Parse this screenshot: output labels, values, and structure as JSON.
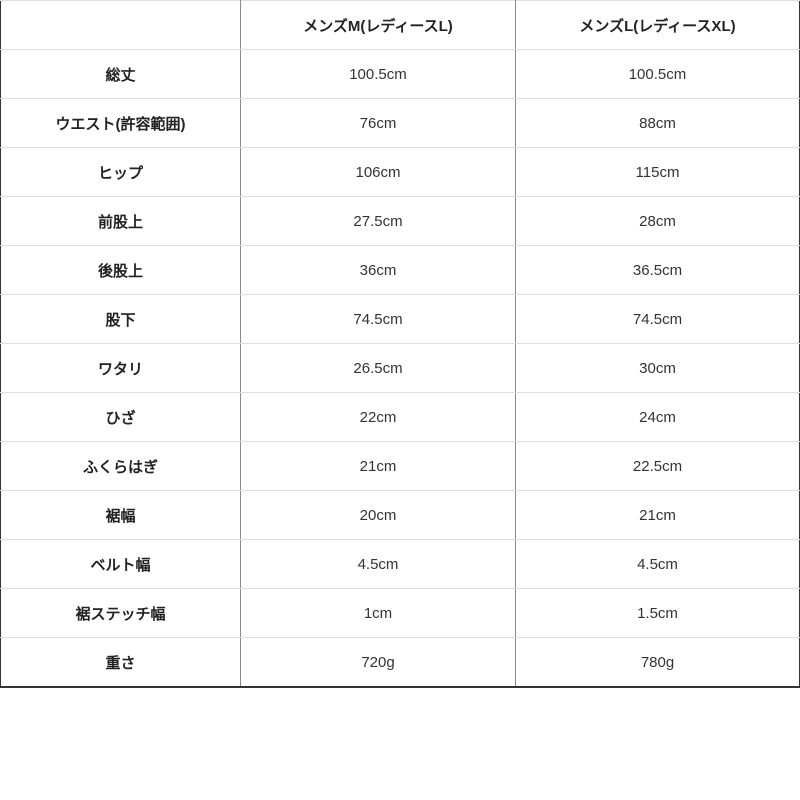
{
  "table": {
    "headers": [
      "",
      "メンズM(レディースL)",
      "メンズL(レディースXL)"
    ],
    "rows": [
      [
        "総丈",
        "100.5cm",
        "100.5cm"
      ],
      [
        "ウエスト(許容範囲)",
        "76cm",
        "88cm"
      ],
      [
        "ヒップ",
        "106cm",
        "115cm"
      ],
      [
        "前股上",
        "27.5cm",
        "28cm"
      ],
      [
        "後股上",
        "36cm",
        "36.5cm"
      ],
      [
        "股下",
        "74.5cm",
        "74.5cm"
      ],
      [
        "ワタリ",
        "26.5cm",
        "30cm"
      ],
      [
        "ひざ",
        "22cm",
        "24cm"
      ],
      [
        "ふくらはぎ",
        "21cm",
        "22.5cm"
      ],
      [
        "裾幅",
        "20cm",
        "21cm"
      ],
      [
        "ベルト幅",
        "4.5cm",
        "4.5cm"
      ],
      [
        "裾ステッチ幅",
        "1cm",
        "1.5cm"
      ],
      [
        "重さ",
        "720g",
        "780g"
      ]
    ]
  }
}
